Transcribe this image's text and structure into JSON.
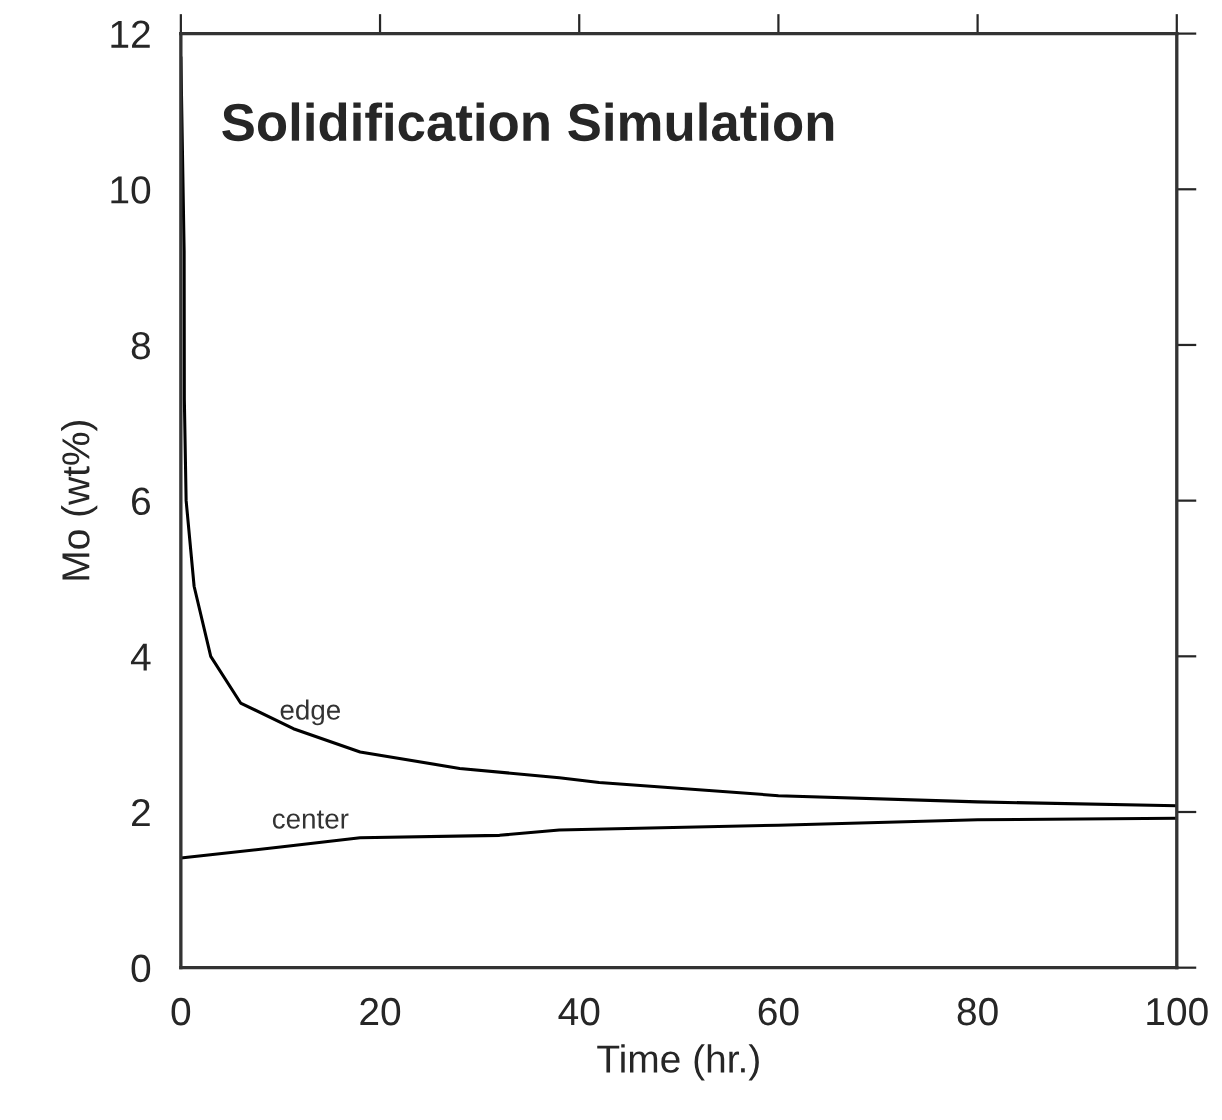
{
  "chart_data": {
    "type": "line",
    "title": "Solidification Simulation",
    "xlabel": "Time (hr.)",
    "ylabel": "Mo (wt%)",
    "xlim": [
      0,
      100
    ],
    "ylim": [
      0,
      12
    ],
    "xticks": [
      0,
      20,
      40,
      60,
      80,
      100
    ],
    "yticks": [
      0,
      2,
      4,
      6,
      8,
      10,
      12
    ],
    "grid": false,
    "marker": "none",
    "line_style": "solid",
    "series": [
      {
        "name": "edge",
        "color": "#000000",
        "x": [
          0,
          0.33,
          0.35,
          0.53,
          1.33,
          3,
          6,
          11.3,
          18,
          28,
          38,
          42,
          60,
          80,
          100
        ],
        "values": [
          11.7,
          9.2,
          7.3,
          6.0,
          4.9,
          4.0,
          3.4,
          3.07,
          2.77,
          2.56,
          2.44,
          2.38,
          2.21,
          2.13,
          2.08
        ]
      },
      {
        "name": "center",
        "color": "#000000",
        "x": [
          0,
          10,
          18,
          32,
          38,
          60,
          80,
          100
        ],
        "values": [
          1.41,
          1.55,
          1.67,
          1.7,
          1.77,
          1.83,
          1.9,
          1.92
        ]
      }
    ]
  }
}
